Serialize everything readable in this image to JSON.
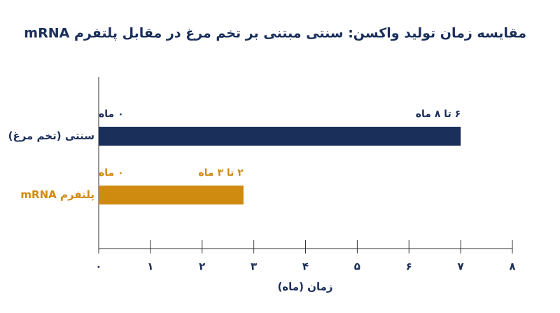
{
  "chart_data": {
    "type": "hbar",
    "title": "مقایسه زمان تولید واکسن: سنتی مبتنی بر تخم مرغ در مقابل پلتفرم mRNA",
    "categories": [
      "سنتی (تخم مرغ)",
      "پلتفرم mRNA"
    ],
    "values": [
      7,
      2.8
    ],
    "colors": [
      "#1b2f5b",
      "#cf8a10"
    ],
    "start_labels": [
      "۰ ماه",
      "۰ ماه"
    ],
    "end_labels": [
      "۶ تا ۸ ماه",
      "۲ تا ۳ ماه"
    ],
    "x_label": "زمان (ماه)",
    "xlim": [
      0,
      8
    ],
    "xticks": [
      {
        "value": 0,
        "label": "۰"
      },
      {
        "value": 1,
        "label": "۱"
      },
      {
        "value": 2,
        "label": "۲"
      },
      {
        "value": 3,
        "label": "۳"
      },
      {
        "value": 4,
        "label": "۴"
      },
      {
        "value": 5,
        "label": "۵"
      },
      {
        "value": 6,
        "label": "۶"
      },
      {
        "value": 7,
        "label": "۷"
      },
      {
        "value": 8,
        "label": "۸"
      }
    ]
  }
}
